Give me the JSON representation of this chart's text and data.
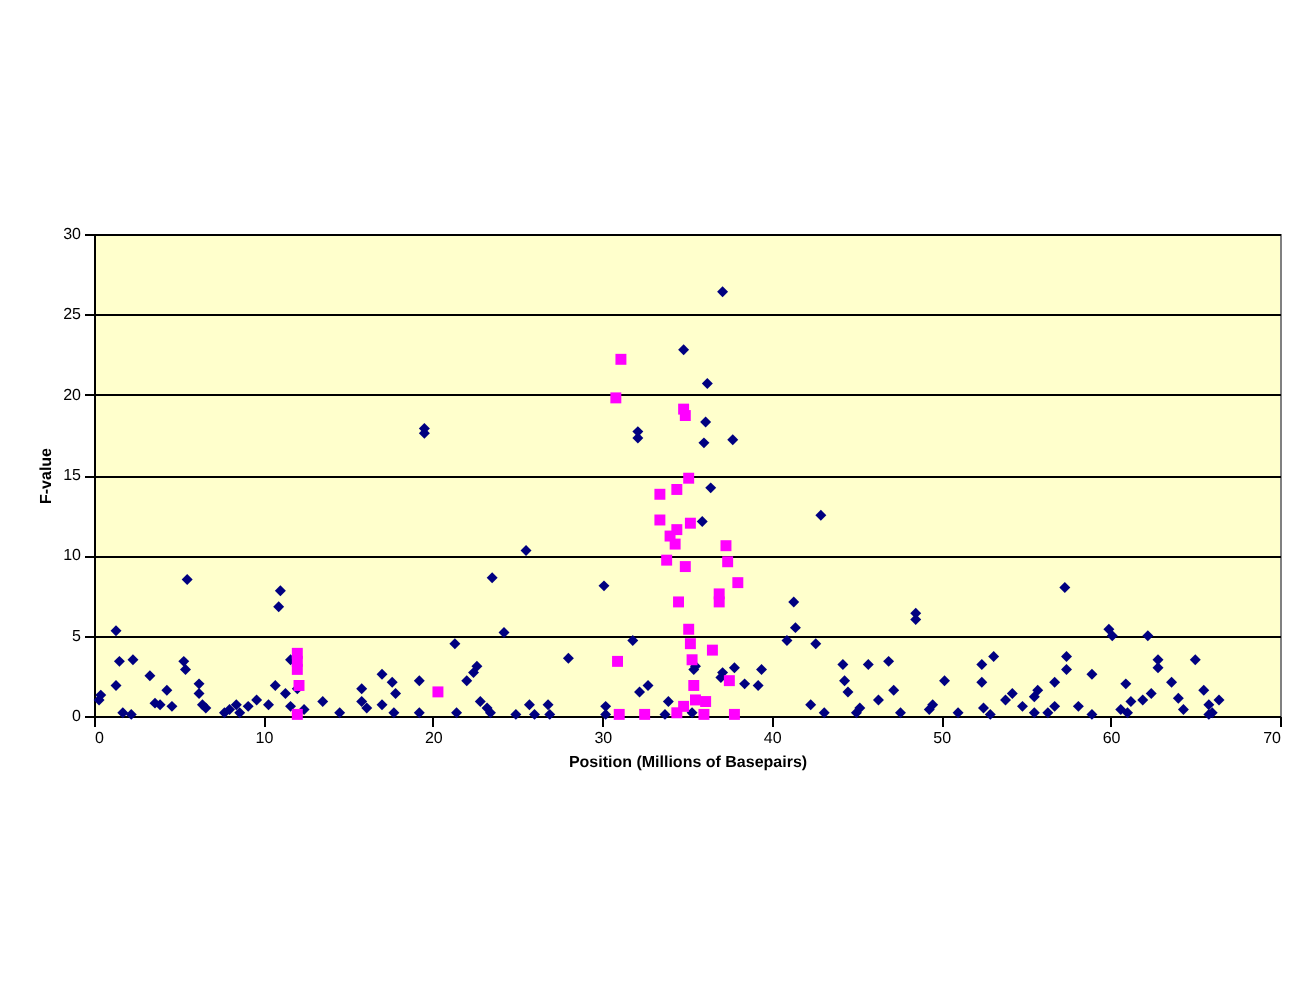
{
  "chart_data": {
    "type": "scatter",
    "xlabel": "Position (Millions of Basepairs)",
    "ylabel": "F-value",
    "xlim": [
      0,
      70
    ],
    "xticks": [
      0,
      10,
      20,
      30,
      40,
      50,
      60,
      70
    ],
    "ylim": [
      0,
      30
    ],
    "yticks": [
      0,
      5,
      10,
      15,
      20,
      25,
      30
    ],
    "grid": "y",
    "legend": false,
    "series": [
      {
        "color": "#000080",
        "marker": "diamond",
        "x": [
          0.3,
          0.4,
          1.3,
          1.3,
          1.5,
          2.3,
          1.7,
          2.2,
          3.3,
          3.6,
          3.9,
          4.3,
          4.6,
          5.5,
          5.3,
          5.4,
          6.2,
          6.2,
          6.4,
          6.6,
          7.7,
          8.0,
          8.4,
          8.6,
          9.1,
          9.6,
          10.3,
          11,
          10.9,
          10.7,
          11.3,
          11.6,
          11.6,
          12,
          12.4,
          13.5,
          14.5,
          15.8,
          15.8,
          16.1,
          17,
          17,
          17.6,
          17.7,
          17.8,
          19.2,
          19.2,
          19.5,
          19.5,
          21.3,
          21.4,
          22,
          22.4,
          22.6,
          22.8,
          23.2,
          23.4,
          23.5,
          24.2,
          24.9,
          25.5,
          25.7,
          26,
          26.8,
          26.9,
          28,
          30.1,
          30.2,
          30.2,
          31.8,
          32.1,
          32.1,
          32.2,
          32.7,
          33.7,
          33.9,
          34.8,
          35.3,
          35.4,
          35.5,
          35.9,
          36.2,
          36.1,
          36.0,
          36.4,
          37.1,
          37.7,
          37,
          37.1,
          37.8,
          38.4,
          39.2,
          39.4,
          40.9,
          41.4,
          41.3,
          42.6,
          42.9,
          42.3,
          43.1,
          44.2,
          44.3,
          44.5,
          45,
          45.7,
          45.2,
          46.3,
          46.9,
          47.2,
          47.6,
          48.5,
          48.5,
          49.3,
          49.5,
          50.2,
          51,
          52.4,
          52.4,
          52.5,
          52.9,
          53.1,
          53.8,
          54.2,
          54.8,
          55.5,
          55.5,
          55.7,
          56.3,
          56.7,
          56.7,
          57.3,
          57.4,
          57.4,
          58.1,
          58.9,
          58.9,
          59.9,
          60.1,
          60.6,
          61.0,
          60.9,
          61.2,
          61.9,
          62.2,
          62.4,
          62.8,
          62.8,
          63.6,
          64,
          64.3,
          65,
          65.5,
          65.8,
          66,
          66.4,
          65.8
        ],
        "values": [
          1,
          1.3,
          1.9,
          5.3,
          3.4,
          3.5,
          0.2,
          0.1,
          2.5,
          0.8,
          0.7,
          1.6,
          0.6,
          8.5,
          3.4,
          2.9,
          2.0,
          1.4,
          0.7,
          0.5,
          0.2,
          0.4,
          0.7,
          0.2,
          0.6,
          1.0,
          0.7,
          7.8,
          6.8,
          1.9,
          1.4,
          0.6,
          3.5,
          1.7,
          0.4,
          0.9,
          0.2,
          1.7,
          0.9,
          0.5,
          2.6,
          0.7,
          2.1,
          0.2,
          1.4,
          0.2,
          2.2,
          17.9,
          17.6,
          4.5,
          0.2,
          2.2,
          2.7,
          3.1,
          0.9,
          0.5,
          0.2,
          8.6,
          5.2,
          0.1,
          10.3,
          0.7,
          0.1,
          0.7,
          0.1,
          3.6,
          8.1,
          0.6,
          0.1,
          4.7,
          17.7,
          17.3,
          1.5,
          1.9,
          0.1,
          0.9,
          22.8,
          0.2,
          2.9,
          3.1,
          12.1,
          20.7,
          18.3,
          17,
          14.2,
          26.4,
          17.2,
          2.4,
          2.7,
          3,
          2,
          1.9,
          2.9,
          4.7,
          5.5,
          7.1,
          4.5,
          12.5,
          0.7,
          0.2,
          3.2,
          2.2,
          1.5,
          0.2,
          3.2,
          0.5,
          1,
          3.4,
          1.6,
          0.2,
          6.4,
          6,
          0.4,
          0.7,
          2.2,
          0.2,
          3.2,
          2.1,
          0.5,
          0.1,
          3.7,
          1,
          1.4,
          0.6,
          1.2,
          0.2,
          1.6,
          0.2,
          0.6,
          2.1,
          8.0,
          3.7,
          2.9,
          0.6,
          0.1,
          2.6,
          5.4,
          5,
          0.4,
          0.2,
          2.0,
          0.9,
          1,
          5,
          1.4,
          3.5,
          3,
          2.1,
          1.1,
          0.4,
          3.5,
          1.6,
          0.7,
          0.2,
          1,
          0.1
        ]
      },
      {
        "color": "#ff00ff",
        "marker": "square",
        "x": [
          12,
          12,
          12,
          12.1,
          12,
          20.3,
          31.1,
          30.8,
          30.9,
          31,
          32.5,
          33.4,
          33.4,
          33.8,
          34.4,
          34,
          34.3,
          34.4,
          34.5,
          34.4,
          34.9,
          34.8,
          34.9,
          35.1,
          35.2,
          35.1,
          35.2,
          35.3,
          35.4,
          35.5,
          34.8,
          36,
          36.1,
          36.5,
          36.9,
          36.9,
          37.4,
          37.3,
          37.8,
          38.0,
          37.5
        ],
        "values": [
          3.9,
          3.4,
          2.9,
          1.9,
          0.1,
          1.5,
          22.2,
          19.8,
          3.4,
          0.1,
          0.1,
          13.8,
          12.2,
          9.7,
          14.1,
          11.2,
          10.7,
          11.6,
          7.1,
          0.2,
          9.3,
          19.1,
          18.7,
          14.8,
          12,
          5.4,
          4.5,
          3.5,
          1.9,
          1,
          0.6,
          0.1,
          0.9,
          4.1,
          7.1,
          7.6,
          9.6,
          10.6,
          0.1,
          8.3,
          2.2
        ]
      }
    ]
  }
}
